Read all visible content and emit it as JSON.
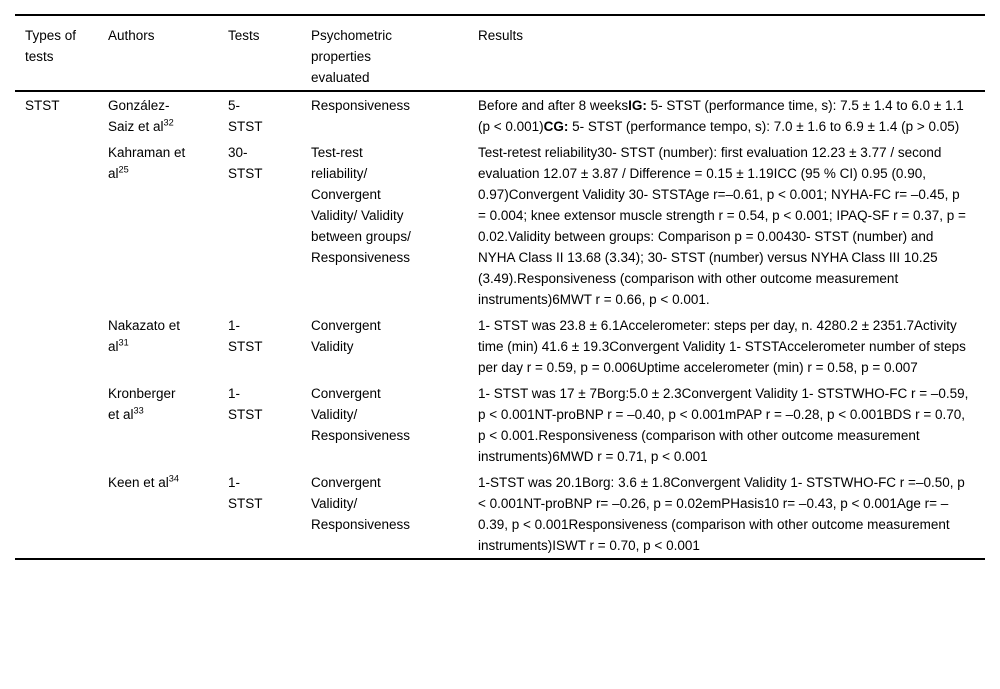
{
  "colors": {
    "background": "#ffffff",
    "text": "#000000",
    "rule": "#000000"
  },
  "table": {
    "headers": [
      "Types of tests",
      "Authors",
      "Tests",
      "Psychometric properties evaluated",
      "Results"
    ],
    "rows": [
      {
        "type": "STST",
        "author": {
          "name": "González-Saiz et al",
          "ref": "32"
        },
        "test": "5- STST",
        "properties": "Responsiveness",
        "results": [
          {
            "text": "Before and after 8 weeks"
          },
          {
            "text": "IG:",
            "bold": true
          },
          {
            "text": " 5- STST (performance time, s): 7.5 ± 1.4 to 6.0 ± 1.1 (p < 0.001)"
          },
          {
            "text": "CG:",
            "bold": true
          },
          {
            "text": " 5- STST (performance tempo, s): 7.0 ± 1.6 to 6.9 ± 1.4 (p > 0.05)"
          }
        ]
      },
      {
        "type": "",
        "author": {
          "name": "Kahraman et al",
          "ref": "25"
        },
        "test": "30- STST",
        "properties": "Test-rest reliability/ Convergent Validity/ Validity between groups/ Responsiveness",
        "results": [
          {
            "text": "Test-retest reliability30- STST (number): first evaluation 12.23 ± 3.77 / second evaluation 12.07 ± 3.87 / Difference = 0.15 ± 1.19ICC (95 % CI) 0.95 (0.90, 0.97)Convergent Validity 30- STSTAge r=–0.61, p < 0.001; NYHA-FC r= –0.45, p = 0.004; knee extensor muscle strength r = 0.54, p < 0.001; IPAQ-SF r = 0.37, p = 0.02.Validity between groups: Comparison p = 0.00430- STST (number) and NYHA Class II 13.68 (3.34); 30- STST (number) versus NYHA Class III 10.25 (3.49).Responsiveness (comparison with other outcome measurement instruments)6MWT r = 0.66, p < 0.001."
          }
        ]
      },
      {
        "type": "",
        "author": {
          "name": "Nakazato et al",
          "ref": "31"
        },
        "test": "1- STST",
        "properties": "Convergent Validity",
        "results": [
          {
            "text": "1- STST was 23.8 ± 6.1Accelerometer: steps per day, n. 4280.2 ± 2351.7Activity time (min) 41.6 ± 19.3Convergent Validity 1- STSTAccelerometer number of steps per day r = 0.59, p = 0.006Uptime accelerometer (min) r = 0.58, p = 0.007"
          }
        ]
      },
      {
        "type": "",
        "author": {
          "name": "Kronberger et al",
          "ref": "33"
        },
        "test": "1- STST",
        "properties": "Convergent Validity/ Responsiveness",
        "results": [
          {
            "text": "1- STST was 17 ± 7Borg:5.0 ± 2.3Convergent Validity 1- STSTWHO-FC r = –0.59, p < 0.001NT-proBNP r = –0.40, p < 0.001mPAP r = –0.28, p < 0.001BDS r = 0.70, p < 0.001.Responsiveness (comparison with other outcome measurement instruments)6MWD r = 0.71, p < 0.001"
          }
        ]
      },
      {
        "type": "",
        "author": {
          "name": "Keen et al",
          "ref": "34"
        },
        "test": "1- STST",
        "properties": "Convergent Validity/ Responsiveness",
        "results": [
          {
            "text": "1-STST was 20.1Borg: 3.6 ± 1.8Convergent Validity 1- STSTWHO-FC r =–0.50, p < 0.001NT-proBNP r= –0.26, p = 0.02emPHasis10 r= –0.43, p < 0.001Age r= –0.39, p < 0.001Responsiveness (comparison with other outcome measurement instruments)ISWT r = 0.70, p < 0.001"
          }
        ]
      }
    ]
  }
}
